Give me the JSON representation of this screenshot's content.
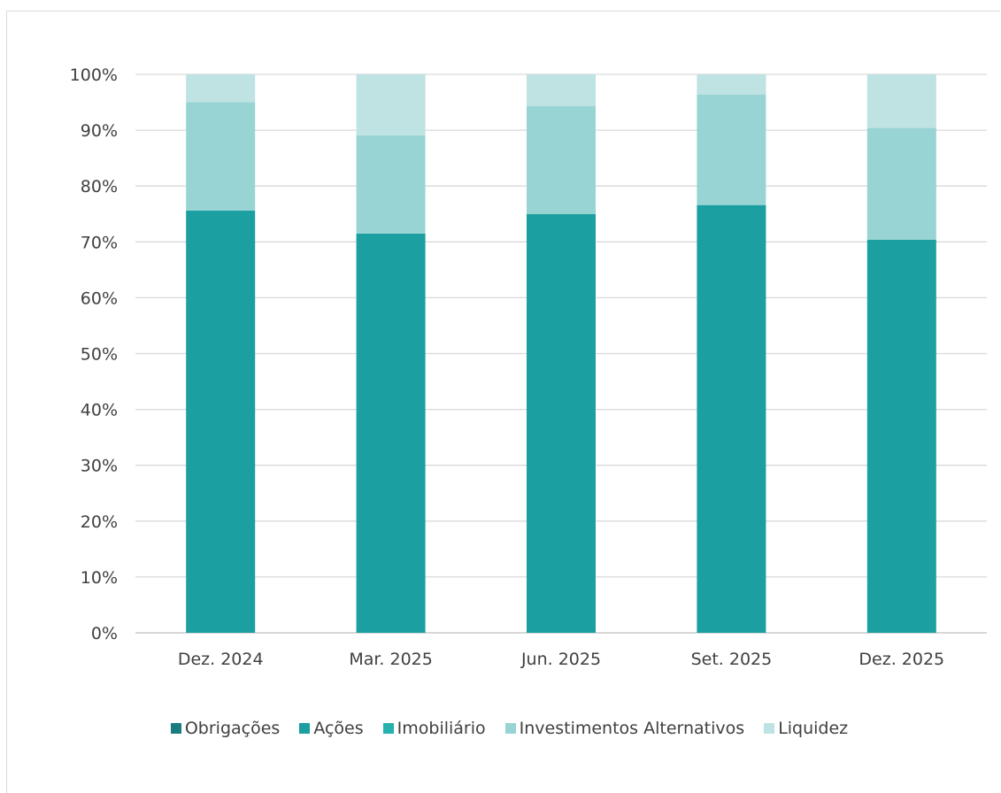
{
  "chart_data": {
    "type": "bar",
    "stacked": true,
    "categories": [
      "Dez. 2024",
      "Mar. 2025",
      "Jun. 2025",
      "Set. 2025",
      "Dez. 2025"
    ],
    "series": [
      {
        "name": "Obrigações",
        "color": "#1a7d7d",
        "values": [
          0,
          0,
          0,
          0,
          0
        ]
      },
      {
        "name": "Ações",
        "color": "#1c9fa0",
        "values": [
          75.6,
          71.5,
          75.0,
          76.6,
          70.4
        ]
      },
      {
        "name": "Imobiliário",
        "color": "#25b1ad",
        "values": [
          0,
          0,
          0,
          0,
          0
        ]
      },
      {
        "name": "Investimentos Alternativos",
        "color": "#99d4d4",
        "values": [
          19.4,
          17.6,
          19.3,
          19.8,
          20.0
        ]
      },
      {
        "name": "Liquidez",
        "color": "#bfe2e2",
        "values": [
          5.0,
          10.9,
          5.7,
          3.6,
          9.6
        ]
      }
    ],
    "ylim": [
      0,
      100
    ],
    "yticks": [
      "0%",
      "10%",
      "20%",
      "30%",
      "40%",
      "50%",
      "60%",
      "70%",
      "80%",
      "90%",
      "100%"
    ],
    "grid": true,
    "legend_position": "bottom",
    "title": "",
    "xlabel": "",
    "ylabel": ""
  }
}
